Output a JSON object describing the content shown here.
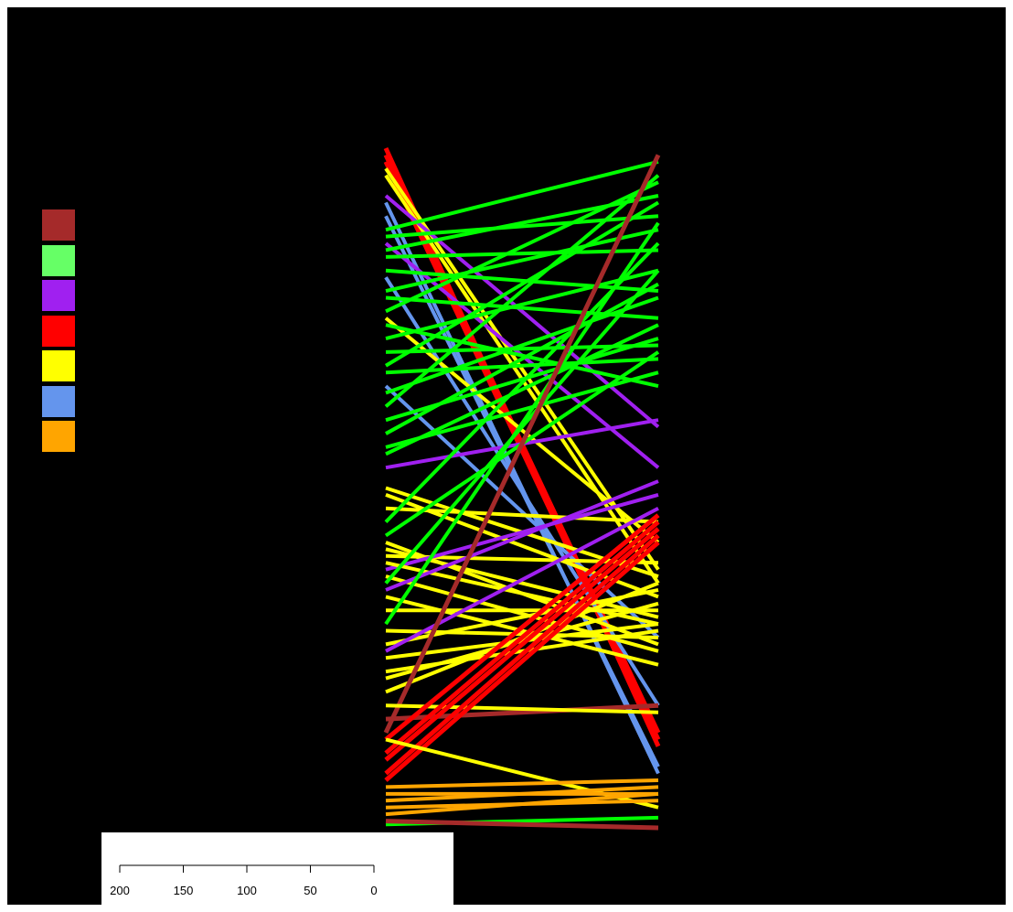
{
  "legend": {
    "swatches": [
      {
        "name": "brown",
        "color": "#A52A2A"
      },
      {
        "name": "lightgreen",
        "color": "#66FF66"
      },
      {
        "name": "purple",
        "color": "#A020F0"
      },
      {
        "name": "red",
        "color": "#FF0000"
      },
      {
        "name": "yellow",
        "color": "#FFFF00"
      },
      {
        "name": "cornflowerblue",
        "color": "#6495ED"
      },
      {
        "name": "orange",
        "color": "#FFA500"
      }
    ]
  },
  "scale_bar": {
    "ticks": [
      "200",
      "150",
      "100",
      "50",
      "0"
    ]
  },
  "colors": {
    "background": "#000000",
    "brown": "#A52A2A",
    "green": "#00FF00",
    "purple": "#A020F0",
    "red": "#FF0000",
    "yellow": "#FFFF00",
    "blue": "#6495ED",
    "orange": "#FFA500"
  },
  "connections": [
    {
      "color": "red",
      "from": 0.0,
      "to": 0.88
    },
    {
      "color": "red",
      "from": 0.01,
      "to": 0.86
    },
    {
      "color": "red",
      "from": 0.02,
      "to": 0.87
    },
    {
      "color": "yellow",
      "from": 0.03,
      "to": 0.62
    },
    {
      "color": "yellow",
      "from": 0.04,
      "to": 0.64
    },
    {
      "color": "purple",
      "from": 0.07,
      "to": 0.41
    },
    {
      "color": "blue",
      "from": 0.08,
      "to": 0.92
    },
    {
      "color": "blue",
      "from": 0.1,
      "to": 0.91
    },
    {
      "color": "green",
      "from": 0.12,
      "to": 0.02
    },
    {
      "color": "purple",
      "from": 0.14,
      "to": 0.47
    },
    {
      "color": "green",
      "from": 0.13,
      "to": 0.1
    },
    {
      "color": "green",
      "from": 0.15,
      "to": 0.07
    },
    {
      "color": "green",
      "from": 0.16,
      "to": 0.15
    },
    {
      "color": "green",
      "from": 0.18,
      "to": 0.21
    },
    {
      "color": "blue",
      "from": 0.19,
      "to": 0.82
    },
    {
      "color": "green",
      "from": 0.21,
      "to": 0.12
    },
    {
      "color": "green",
      "from": 0.22,
      "to": 0.25
    },
    {
      "color": "green",
      "from": 0.24,
      "to": 0.05
    },
    {
      "color": "yellow",
      "from": 0.25,
      "to": 0.58
    },
    {
      "color": "green",
      "from": 0.26,
      "to": 0.35
    },
    {
      "color": "green",
      "from": 0.28,
      "to": 0.18
    },
    {
      "color": "green",
      "from": 0.3,
      "to": 0.29
    },
    {
      "color": "green",
      "from": 0.32,
      "to": 0.08
    },
    {
      "color": "green",
      "from": 0.33,
      "to": 0.31
    },
    {
      "color": "blue",
      "from": 0.35,
      "to": 0.72
    },
    {
      "color": "green",
      "from": 0.36,
      "to": 0.22
    },
    {
      "color": "green",
      "from": 0.38,
      "to": 0.04
    },
    {
      "color": "green",
      "from": 0.4,
      "to": 0.28
    },
    {
      "color": "green",
      "from": 0.42,
      "to": 0.2
    },
    {
      "color": "green",
      "from": 0.44,
      "to": 0.33
    },
    {
      "color": "purple",
      "from": 0.47,
      "to": 0.4
    },
    {
      "color": "green",
      "from": 0.45,
      "to": 0.26
    },
    {
      "color": "yellow",
      "from": 0.5,
      "to": 0.63
    },
    {
      "color": "yellow",
      "from": 0.51,
      "to": 0.66
    },
    {
      "color": "yellow",
      "from": 0.53,
      "to": 0.55
    },
    {
      "color": "green",
      "from": 0.55,
      "to": 0.14
    },
    {
      "color": "green",
      "from": 0.57,
      "to": 0.3
    },
    {
      "color": "yellow",
      "from": 0.58,
      "to": 0.73
    },
    {
      "color": "yellow",
      "from": 0.59,
      "to": 0.69
    },
    {
      "color": "yellow",
      "from": 0.6,
      "to": 0.61
    },
    {
      "color": "purple",
      "from": 0.62,
      "to": 0.51
    },
    {
      "color": "yellow",
      "from": 0.61,
      "to": 0.7
    },
    {
      "color": "yellow",
      "from": 0.63,
      "to": 0.74
    },
    {
      "color": "green",
      "from": 0.64,
      "to": 0.18
    },
    {
      "color": "purple",
      "from": 0.65,
      "to": 0.49
    },
    {
      "color": "yellow",
      "from": 0.66,
      "to": 0.76
    },
    {
      "color": "yellow",
      "from": 0.68,
      "to": 0.68
    },
    {
      "color": "green",
      "from": 0.7,
      "to": 0.11
    },
    {
      "color": "yellow",
      "from": 0.71,
      "to": 0.72
    },
    {
      "color": "yellow",
      "from": 0.73,
      "to": 0.65
    },
    {
      "color": "purple",
      "from": 0.74,
      "to": 0.53
    },
    {
      "color": "yellow",
      "from": 0.75,
      "to": 0.7
    },
    {
      "color": "yellow",
      "from": 0.77,
      "to": 0.71
    },
    {
      "color": "yellow",
      "from": 0.78,
      "to": 0.67
    },
    {
      "color": "yellow",
      "from": 0.8,
      "to": 0.64
    },
    {
      "color": "brown",
      "from": 0.86,
      "to": 0.01
    },
    {
      "color": "brown",
      "from": 0.84,
      "to": 0.82
    },
    {
      "color": "yellow",
      "from": 0.82,
      "to": 0.83
    },
    {
      "color": "red",
      "from": 0.87,
      "to": 0.54
    },
    {
      "color": "red",
      "from": 0.89,
      "to": 0.55
    },
    {
      "color": "red",
      "from": 0.9,
      "to": 0.56
    },
    {
      "color": "red",
      "from": 0.92,
      "to": 0.57
    },
    {
      "color": "red",
      "from": 0.93,
      "to": 0.58
    },
    {
      "color": "yellow",
      "from": 0.87,
      "to": 0.97
    },
    {
      "color": "orange",
      "from": 0.94,
      "to": 0.93
    },
    {
      "color": "orange",
      "from": 0.95,
      "to": 0.95
    },
    {
      "color": "orange",
      "from": 0.96,
      "to": 0.94
    },
    {
      "color": "orange",
      "from": 0.97,
      "to": 0.96
    },
    {
      "color": "orange",
      "from": 0.98,
      "to": 0.95
    },
    {
      "color": "green",
      "from": 0.995,
      "to": 0.985
    },
    {
      "color": "brown",
      "from": 0.99,
      "to": 1.0
    }
  ]
}
